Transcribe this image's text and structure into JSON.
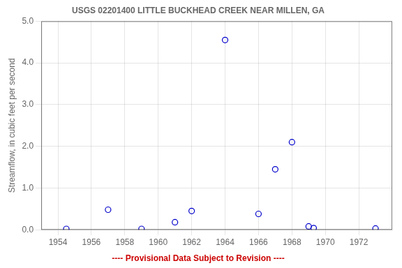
{
  "chart_data": {
    "type": "scatter",
    "title": "USGS 02201400 LITTLE BUCKHEAD CREEK NEAR MILLEN, GA",
    "ylabel": "Streamflow, in cubic feet per second",
    "annotations": [
      {
        "text": "---- Provisional Data Subject to Revision ----",
        "color": "#CC0000"
      }
    ],
    "x": [
      1954.5,
      1957.0,
      1959.0,
      1961.0,
      1962.0,
      1964.0,
      1966.0,
      1967.0,
      1968.0,
      1969.0,
      1969.3,
      1973.0
    ],
    "values": [
      0.02,
      0.48,
      0.02,
      0.18,
      0.45,
      4.55,
      0.38,
      1.45,
      2.1,
      0.08,
      0.04,
      0.03
    ],
    "color": "#0000CC",
    "marker": "circle",
    "xlim": [
      1953,
      1974
    ],
    "xticks": [
      1954,
      1956,
      1958,
      1960,
      1962,
      1964,
      1966,
      1968,
      1970,
      1972
    ],
    "ylim": [
      0.0,
      5.0
    ],
    "yticks": [
      {
        "value": 0,
        "label": "0.0"
      },
      {
        "value": 1,
        "label": "1.0"
      },
      {
        "value": 2,
        "label": "2.0"
      },
      {
        "value": 3,
        "label": "3.0"
      },
      {
        "value": 4,
        "label": "4.0"
      },
      {
        "value": 5,
        "label": "5.0"
      }
    ],
    "grid": true
  }
}
